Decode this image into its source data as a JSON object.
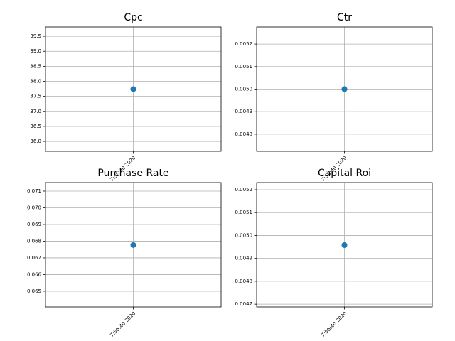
{
  "chart_data": [
    {
      "type": "line",
      "title": "Cpc",
      "categories": [
        "7:56:40 2020"
      ],
      "series": [
        {
          "color": "#1f77b4",
          "values": [
            37.74
          ]
        }
      ],
      "ylim": [
        35.67,
        39.81
      ],
      "yticks": [
        {
          "value": 36.0,
          "label": "36.0"
        },
        36.5,
        {
          "value": 37.0,
          "label": "37.0"
        },
        37.5,
        {
          "value": 38.0,
          "label": "38.0"
        },
        38.5,
        {
          "value": 39.0,
          "label": "39.0"
        },
        39.5
      ],
      "grid": true
    },
    {
      "type": "line",
      "title": "Ctr",
      "categories": [
        "7:56:40 2020"
      ],
      "series": [
        {
          "color": "#1f77b4",
          "values": [
            0.005
          ]
        }
      ],
      "ylim": [
        0.004724,
        0.005276
      ],
      "yticks": [
        0.0048,
        0.0049,
        {
          "value": 0.005,
          "label": "0.0050"
        },
        0.0051,
        0.0052
      ],
      "grid": true
    },
    {
      "type": "line",
      "title": "Purchase Rate",
      "categories": [
        "7:56:40 2020"
      ],
      "series": [
        {
          "color": "#1f77b4",
          "values": [
            0.06777
          ]
        }
      ],
      "ylim": [
        0.06406,
        0.07151
      ],
      "yticks": [
        0.065,
        0.066,
        0.067,
        0.068,
        0.069,
        {
          "value": 0.07,
          "label": "0.070"
        },
        0.071
      ],
      "grid": true
    },
    {
      "type": "line",
      "title": "Capital Roi",
      "categories": [
        "7:56:40 2020"
      ],
      "series": [
        {
          "color": "#1f77b4",
          "values": [
            0.004958
          ]
        }
      ],
      "ylim": [
        0.004688,
        0.005231
      ],
      "yticks": [
        0.0047,
        0.0048,
        0.0049,
        {
          "value": 0.005,
          "label": "0.0050"
        },
        0.0051,
        0.0052
      ],
      "grid": true
    }
  ]
}
